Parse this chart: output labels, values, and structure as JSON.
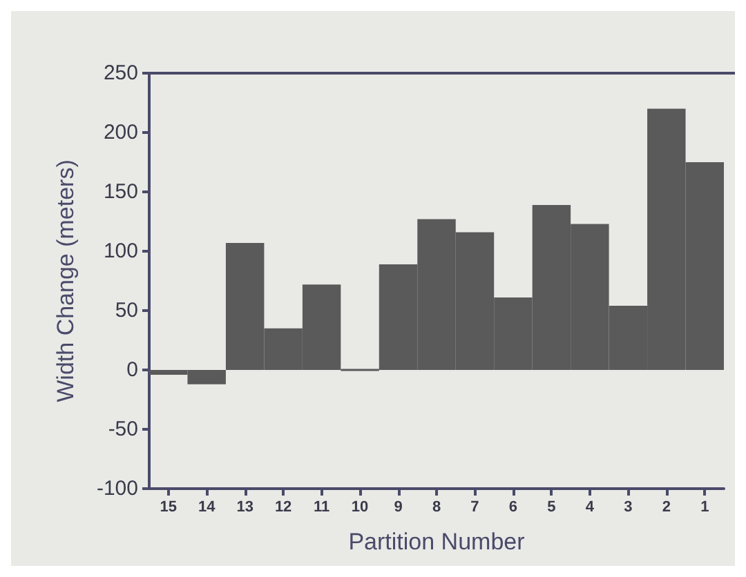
{
  "chart_data": {
    "type": "bar",
    "xlabel": "Partition Number",
    "ylabel": "Width Change (meters)",
    "categories": [
      "15",
      "14",
      "13",
      "12",
      "11",
      "10",
      "9",
      "8",
      "7",
      "6",
      "5",
      "4",
      "3",
      "2",
      "1"
    ],
    "values": [
      -4,
      -12,
      107,
      35,
      72,
      0,
      89,
      127,
      116,
      61,
      139,
      123,
      54,
      220,
      175
    ],
    "color": "#5a5a5a",
    "ylim": [
      -100,
      250
    ],
    "yticks": [
      -100,
      -50,
      0,
      50,
      100,
      150,
      200,
      250
    ],
    "grid": false
  }
}
